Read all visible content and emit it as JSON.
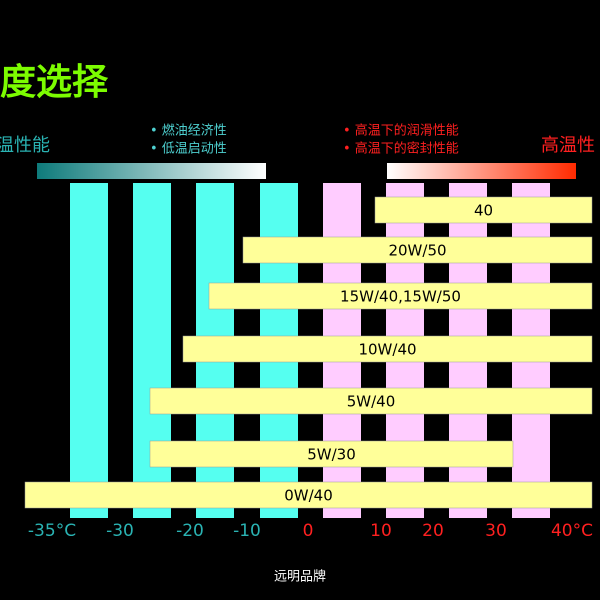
{
  "title": "度选择",
  "left_label": "温性能",
  "right_label": "高温性",
  "low_temp_notes": [
    "• 燃油经济性",
    "• 低温启动性"
  ],
  "high_temp_notes": [
    "• 高温下的润滑性能",
    "• 高温下的密封性能"
  ],
  "grades": [
    "40",
    "20W/50",
    "15W/40,15W/50",
    "10W/40",
    "5W/40",
    "5W/30",
    "0W/40"
  ],
  "axis_labels": [
    "-35°C",
    "-30",
    "-20",
    "-10",
    "0",
    "10",
    "20",
    "30",
    "40°C"
  ],
  "footer": "远明品牌"
}
